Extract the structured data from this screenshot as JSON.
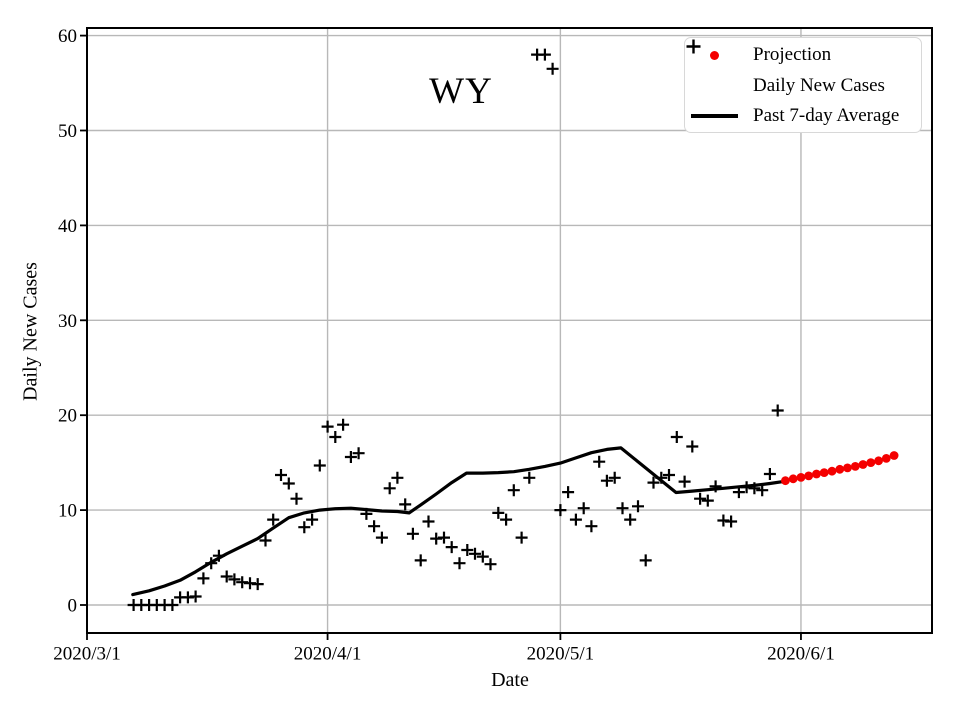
{
  "style": {
    "background": "#ffffff",
    "projection_red": "#f40000",
    "grid_color": "#b8b8b8",
    "axis_color": "#000000",
    "text_color": "#000000",
    "legend_border": "#d8d8d8",
    "series_black": "#000000"
  },
  "legend": {
    "items": [
      {
        "label": "Projection",
        "marker": "red-dot"
      },
      {
        "label": "Daily New Cases",
        "marker": "black-plus"
      },
      {
        "label": "Past 7-day Average",
        "marker": "black-line"
      }
    ]
  },
  "chart_data": {
    "type": "line",
    "title": "WY",
    "xlabel": "Date",
    "ylabel": "Daily New Cases",
    "grid": true,
    "legend_position": "upper right",
    "x_tick_labels": [
      "2020/3/1",
      "2020/4/1",
      "2020/5/1",
      "2020/6/1"
    ],
    "x_tick_days": [
      0,
      31,
      61,
      92
    ],
    "y_ticks": [
      0,
      10,
      20,
      30,
      40,
      50,
      60
    ],
    "y_tick_labels": [
      "0",
      "10",
      "20",
      "30",
      "40",
      "50",
      "60"
    ],
    "xlim_days_from_2020_3_1": [
      0,
      108.9
    ],
    "ylim": [
      -3,
      60.8
    ],
    "series": {
      "daily_new_cases": {
        "label": "Daily New Cases",
        "type": "scatter",
        "marker": "plus",
        "color": "#000000",
        "points": [
          [
            "2020/3/7",
            0
          ],
          [
            "2020/3/8",
            0
          ],
          [
            "2020/3/9",
            0
          ],
          [
            "2020/3/10",
            0
          ],
          [
            "2020/3/11",
            0
          ],
          [
            "2020/3/12",
            0
          ],
          [
            "2020/3/13",
            0.8
          ],
          [
            "2020/3/14",
            0.8
          ],
          [
            "2020/3/15",
            0.9
          ],
          [
            "2020/3/16",
            2.8
          ],
          [
            "2020/3/17",
            4.4
          ],
          [
            "2020/3/18",
            5.2
          ],
          [
            "2020/3/19",
            3.0
          ],
          [
            "2020/3/20",
            2.7
          ],
          [
            "2020/3/21",
            2.4
          ],
          [
            "2020/3/22",
            2.3
          ],
          [
            "2020/3/23",
            2.2
          ],
          [
            "2020/3/24",
            6.8
          ],
          [
            "2020/3/25",
            9.0
          ],
          [
            "2020/3/26",
            13.7
          ],
          [
            "2020/3/27",
            12.8
          ],
          [
            "2020/3/28",
            11.2
          ],
          [
            "2020/3/29",
            8.2
          ],
          [
            "2020/3/30",
            9.0
          ],
          [
            "2020/3/31",
            14.7
          ],
          [
            "2020/4/1",
            18.8
          ],
          [
            "2020/4/2",
            17.7
          ],
          [
            "2020/4/3",
            19.0
          ],
          [
            "2020/4/4",
            15.6
          ],
          [
            "2020/4/5",
            16.0
          ],
          [
            "2020/4/6",
            9.6
          ],
          [
            "2020/4/7",
            8.3
          ],
          [
            "2020/4/8",
            7.1
          ],
          [
            "2020/4/9",
            12.3
          ],
          [
            "2020/4/10",
            13.4
          ],
          [
            "2020/4/11",
            10.6
          ],
          [
            "2020/4/12",
            7.5
          ],
          [
            "2020/4/13",
            4.7
          ],
          [
            "2020/4/14",
            8.8
          ],
          [
            "2020/4/15",
            7.0
          ],
          [
            "2020/4/16",
            7.1
          ],
          [
            "2020/4/17",
            6.1
          ],
          [
            "2020/4/18",
            4.4
          ],
          [
            "2020/4/19",
            5.8
          ],
          [
            "2020/4/20",
            5.4
          ],
          [
            "2020/4/21",
            5.1
          ],
          [
            "2020/4/22",
            4.3
          ],
          [
            "2020/4/23",
            9.7
          ],
          [
            "2020/4/24",
            9.0
          ],
          [
            "2020/4/25",
            12.1
          ],
          [
            "2020/4/26",
            7.1
          ],
          [
            "2020/4/27",
            13.4
          ],
          [
            "2020/4/28",
            58
          ],
          [
            "2020/4/29",
            58
          ],
          [
            "2020/4/30",
            56.5
          ],
          [
            "2020/5/1",
            10.0
          ],
          [
            "2020/5/2",
            11.9
          ],
          [
            "2020/5/3",
            9.0
          ],
          [
            "2020/5/4",
            10.2
          ],
          [
            "2020/5/5",
            8.3
          ],
          [
            "2020/5/6",
            15.1
          ],
          [
            "2020/5/7",
            13.1
          ],
          [
            "2020/5/8",
            13.4
          ],
          [
            "2020/5/9",
            10.2
          ],
          [
            "2020/5/10",
            9.0
          ],
          [
            "2020/5/11",
            10.4
          ],
          [
            "2020/5/12",
            4.7
          ],
          [
            "2020/5/13",
            12.9
          ],
          [
            "2020/5/14",
            13.4
          ],
          [
            "2020/5/15",
            13.7
          ],
          [
            "2020/5/16",
            17.7
          ],
          [
            "2020/5/17",
            13.0
          ],
          [
            "2020/5/18",
            16.7
          ],
          [
            "2020/5/19",
            11.2
          ],
          [
            "2020/5/20",
            11.0
          ],
          [
            "2020/5/21",
            12.5
          ],
          [
            "2020/5/22",
            8.9
          ],
          [
            "2020/5/23",
            8.8
          ],
          [
            "2020/5/24",
            11.9
          ],
          [
            "2020/5/25",
            12.4
          ],
          [
            "2020/5/26",
            12.3
          ],
          [
            "2020/5/27",
            12.1
          ],
          [
            "2020/5/28",
            13.8
          ],
          [
            "2020/5/29",
            20.5
          ]
        ]
      },
      "past_7day_average": {
        "label": "Past 7-day Average",
        "type": "line",
        "color": "#000000",
        "line_width": 3.2,
        "points_days_value": [
          [
            5.9,
            1.1
          ],
          [
            8,
            1.5
          ],
          [
            10,
            2.0
          ],
          [
            12,
            2.6
          ],
          [
            14,
            3.5
          ],
          [
            16,
            4.5
          ],
          [
            18,
            5.4
          ],
          [
            20,
            6.2
          ],
          [
            22,
            7.0
          ],
          [
            24,
            8.1
          ],
          [
            26,
            9.2
          ],
          [
            28,
            9.7
          ],
          [
            30,
            10.0
          ],
          [
            32,
            10.15
          ],
          [
            34,
            10.2
          ],
          [
            36,
            10.05
          ],
          [
            38,
            9.9
          ],
          [
            40,
            9.85
          ],
          [
            41.5,
            9.7
          ],
          [
            43,
            10.55
          ],
          [
            45,
            11.7
          ],
          [
            47,
            12.9
          ],
          [
            48.9,
            13.9
          ],
          [
            51,
            13.9
          ],
          [
            53,
            13.95
          ],
          [
            55,
            14.05
          ],
          [
            57,
            14.3
          ],
          [
            59,
            14.6
          ],
          [
            61,
            14.95
          ],
          [
            63,
            15.5
          ],
          [
            65,
            16.05
          ],
          [
            67,
            16.4
          ],
          [
            68.8,
            16.55
          ],
          [
            75.9,
            11.85
          ],
          [
            78,
            12.0
          ],
          [
            80,
            12.15
          ],
          [
            82,
            12.3
          ],
          [
            84,
            12.45
          ],
          [
            86,
            12.6
          ],
          [
            88,
            12.8
          ],
          [
            89.7,
            13.0
          ]
        ]
      },
      "projection": {
        "label": "Projection",
        "type": "scatter",
        "marker": "circle",
        "color": "#f40000",
        "points": [
          [
            "2020/5/30",
            13.1
          ],
          [
            "2020/5/31",
            13.3
          ],
          [
            "2020/6/1",
            13.45
          ],
          [
            "2020/6/2",
            13.6
          ],
          [
            "2020/6/3",
            13.8
          ],
          [
            "2020/6/4",
            13.95
          ],
          [
            "2020/6/5",
            14.1
          ],
          [
            "2020/6/6",
            14.3
          ],
          [
            "2020/6/7",
            14.45
          ],
          [
            "2020/6/8",
            14.6
          ],
          [
            "2020/6/9",
            14.8
          ],
          [
            "2020/6/10",
            15.0
          ],
          [
            "2020/6/11",
            15.2
          ],
          [
            "2020/6/12",
            15.45
          ],
          [
            "2020/6/13",
            15.75
          ]
        ]
      }
    }
  }
}
